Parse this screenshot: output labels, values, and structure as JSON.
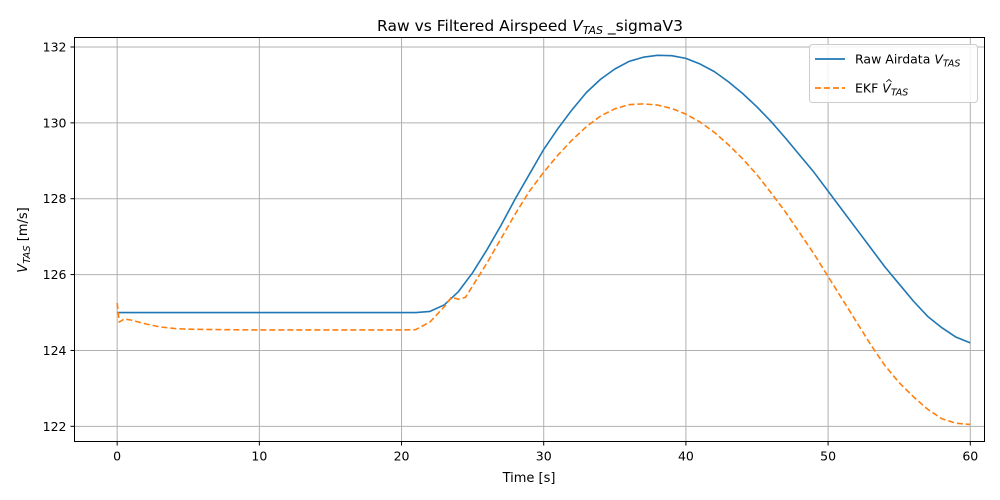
{
  "chart_data": {
    "type": "line",
    "title": {
      "prefix": "Raw vs Filtered Airspeed ",
      "var": "V",
      "sub": "TAS",
      "suffix": " _sigmaV3"
    },
    "xlabel": "Time [s]",
    "ylabel": {
      "var": "V",
      "sub": "TAS",
      "suffix": " [m/s]"
    },
    "xlim": [
      -3,
      61
    ],
    "ylim": [
      121.6,
      132.25
    ],
    "xticks": [
      0,
      10,
      20,
      30,
      40,
      50,
      60
    ],
    "yticks": [
      122,
      124,
      126,
      128,
      130,
      132
    ],
    "grid": true,
    "legend_position": "top-right",
    "series": [
      {
        "name": {
          "prefix": "Raw Airdata ",
          "var": "V",
          "sub": "TAS",
          "hat": false
        },
        "color": "#1f77b4",
        "style": "solid",
        "x": [
          0,
          2,
          5,
          10,
          15,
          20,
          21,
          22,
          23,
          24,
          25,
          26,
          27,
          28,
          29,
          30,
          31,
          32,
          33,
          34,
          35,
          36,
          37,
          38,
          39,
          40,
          41,
          42,
          43,
          44,
          45,
          46,
          47,
          48,
          49,
          50,
          51,
          52,
          53,
          54,
          55,
          56,
          57,
          58,
          59,
          60
        ],
        "y": [
          125.0,
          125.0,
          125.0,
          125.0,
          125.0,
          125.0,
          125.0,
          125.03,
          125.2,
          125.55,
          126.05,
          126.65,
          127.3,
          128.0,
          128.65,
          129.3,
          129.85,
          130.35,
          130.8,
          131.15,
          131.42,
          131.62,
          131.73,
          131.78,
          131.77,
          131.7,
          131.55,
          131.35,
          131.08,
          130.77,
          130.42,
          130.03,
          129.6,
          129.15,
          128.7,
          128.2,
          127.7,
          127.2,
          126.7,
          126.2,
          125.75,
          125.3,
          124.9,
          124.6,
          124.35,
          124.2
        ]
      },
      {
        "name": {
          "prefix": "EKF ",
          "var": "V",
          "sub": "TAS",
          "hat": true
        },
        "color": "#ff7f0e",
        "style": "dashed",
        "x": [
          0,
          0.15,
          0.5,
          1,
          2,
          3,
          4,
          5,
          7,
          10,
          15,
          20,
          21,
          22,
          23,
          23.5,
          24,
          24.5,
          25,
          26,
          27,
          28,
          29,
          30,
          31,
          32,
          33,
          34,
          35,
          36,
          37,
          38,
          39,
          40,
          41,
          42,
          43,
          44,
          45,
          46,
          47,
          48,
          49,
          50,
          51,
          52,
          53,
          54,
          55,
          56,
          57,
          58,
          59,
          60
        ],
        "y": [
          125.25,
          124.75,
          124.83,
          124.8,
          124.7,
          124.62,
          124.58,
          124.56,
          124.55,
          124.54,
          124.54,
          124.54,
          124.55,
          124.75,
          125.15,
          125.4,
          125.35,
          125.4,
          125.7,
          126.3,
          126.95,
          127.6,
          128.2,
          128.7,
          129.15,
          129.55,
          129.9,
          130.18,
          130.37,
          130.48,
          130.5,
          130.47,
          130.38,
          130.23,
          130.02,
          129.75,
          129.42,
          129.05,
          128.63,
          128.15,
          127.65,
          127.1,
          126.55,
          125.95,
          125.35,
          124.75,
          124.15,
          123.6,
          123.15,
          122.78,
          122.45,
          122.2,
          122.08,
          122.05
        ]
      }
    ]
  }
}
